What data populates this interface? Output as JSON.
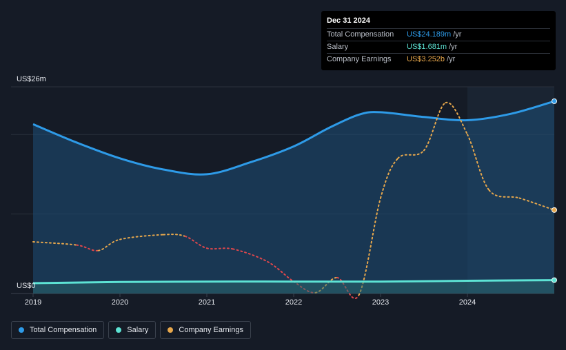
{
  "tooltip": {
    "date": "Dec 31 2024",
    "rows": [
      {
        "label": "Total Compensation",
        "value": "US$24.189m",
        "unit": "/yr",
        "color": "#2e9be8"
      },
      {
        "label": "Salary",
        "value": "US$1.681m",
        "unit": "/yr",
        "color": "#5de3d4"
      },
      {
        "label": "Company Earnings",
        "value": "US$3.252b",
        "unit": "/yr",
        "color": "#e8a84c"
      }
    ]
  },
  "legend": [
    {
      "label": "Total Compensation",
      "color": "#2e9be8"
    },
    {
      "label": "Salary",
      "color": "#5de3d4"
    },
    {
      "label": "Company Earnings",
      "color": "#e8a84c"
    }
  ],
  "colors": {
    "background": "#151b26",
    "forecast_shade": "#1a2432",
    "earnings_negative": "#e0474c"
  },
  "chart_data": {
    "type": "line",
    "y_top_label": "US$26m",
    "y_bottom_label": "US$0",
    "ylim": [
      0,
      26
    ],
    "xlim": [
      2019,
      2025
    ],
    "x_ticks": [
      "2019",
      "2020",
      "2021",
      "2022",
      "2023",
      "2024"
    ],
    "grid": true,
    "series": [
      {
        "name": "Total Compensation",
        "unit": "US$m",
        "x": [
          2019.0,
          2019.5,
          2020.0,
          2020.5,
          2021.0,
          2021.5,
          2022.0,
          2022.4,
          2022.75,
          2023.0,
          2023.5,
          2024.0,
          2024.5,
          2025.0
        ],
        "y": [
          21.3,
          19.0,
          17.0,
          15.6,
          15.0,
          16.5,
          18.5,
          20.8,
          22.5,
          22.8,
          22.2,
          21.8,
          22.6,
          24.189
        ]
      },
      {
        "name": "Salary",
        "unit": "US$m",
        "x": [
          2019.0,
          2020.0,
          2021.0,
          2022.0,
          2023.0,
          2024.0,
          2025.0
        ],
        "y": [
          1.3,
          1.45,
          1.5,
          1.5,
          1.5,
          1.6,
          1.681
        ]
      },
      {
        "name": "Company Earnings",
        "unit": "relative",
        "x": [
          2019.0,
          2019.5,
          2019.75,
          2020.0,
          2020.5,
          2020.75,
          2021.0,
          2021.3,
          2021.7,
          2022.0,
          2022.25,
          2022.5,
          2022.75,
          2023.0,
          2023.2,
          2023.5,
          2023.75,
          2024.0,
          2024.25,
          2024.6,
          2025.0
        ],
        "y": [
          6.5,
          6.1,
          5.4,
          6.8,
          7.4,
          7.2,
          5.7,
          5.6,
          4.0,
          1.5,
          0.1,
          2.0,
          -0.2,
          12.0,
          17.0,
          18.0,
          24.0,
          20.0,
          13.0,
          12.0,
          10.5
        ]
      }
    ]
  }
}
